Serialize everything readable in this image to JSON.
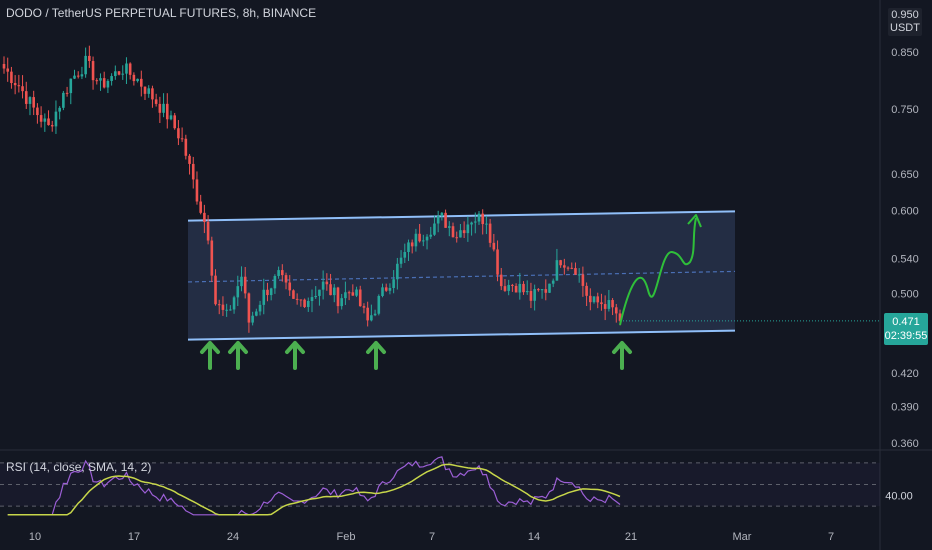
{
  "header": {
    "title": "DODO / TetherUS PERPETUAL FUTURES, 8h, BINANCE",
    "currency_line1": "0.950",
    "currency_line2": "USDT"
  },
  "price_badge": {
    "price": "0.471",
    "countdown": "02:39:55"
  },
  "rsi_label": "RSI (14, close, SMA, 14, 2)",
  "colors": {
    "background": "#131722",
    "up": "#26a69a",
    "down": "#ef5350",
    "channel_line": "#90bff9",
    "channel_fill": "#2a3550",
    "arrow": "#4caf50",
    "rsi": "#9c5fd6",
    "rsi_sma": "#c7d64a"
  },
  "chart_data": [
    {
      "type": "candlestick",
      "title": "DODO / TetherUS PERPETUAL FUTURES, 8h, BINANCE",
      "y_axis": {
        "scale": "log",
        "ticks": [
          "0.950",
          "0.850",
          "0.750",
          "0.650",
          "0.600",
          "0.540",
          "0.500",
          "0.420",
          "0.390",
          "0.360"
        ],
        "range": [
          0.355,
          0.96
        ]
      },
      "x_axis": {
        "ticks": [
          "10",
          "17",
          "24",
          "Feb",
          "7",
          "14",
          "21",
          "Mar",
          "7"
        ]
      },
      "channel": {
        "top": [
          0.587,
          0.599
        ],
        "bottom": [
          0.452,
          0.461
        ],
        "midline": [
          0.513,
          0.525
        ]
      },
      "last_price": 0.471,
      "anchor_closes": [
        {
          "i": 0,
          "c": 0.82
        },
        {
          "i": 4,
          "c": 0.79
        },
        {
          "i": 8,
          "c": 0.75
        },
        {
          "i": 12,
          "c": 0.72
        },
        {
          "i": 18,
          "c": 0.8
        },
        {
          "i": 22,
          "c": 0.83
        },
        {
          "i": 26,
          "c": 0.79
        },
        {
          "i": 32,
          "c": 0.82
        },
        {
          "i": 36,
          "c": 0.8
        },
        {
          "i": 40,
          "c": 0.77
        },
        {
          "i": 44,
          "c": 0.74
        },
        {
          "i": 48,
          "c": 0.7
        },
        {
          "i": 52,
          "c": 0.62
        },
        {
          "i": 55,
          "c": 0.57
        },
        {
          "i": 57,
          "c": 0.49
        },
        {
          "i": 60,
          "c": 0.475
        },
        {
          "i": 64,
          "c": 0.52
        },
        {
          "i": 66,
          "c": 0.47
        },
        {
          "i": 70,
          "c": 0.5
        },
        {
          "i": 74,
          "c": 0.52
        },
        {
          "i": 78,
          "c": 0.49
        },
        {
          "i": 82,
          "c": 0.495
        },
        {
          "i": 86,
          "c": 0.51
        },
        {
          "i": 90,
          "c": 0.495
        },
        {
          "i": 94,
          "c": 0.505
        },
        {
          "i": 98,
          "c": 0.47
        },
        {
          "i": 102,
          "c": 0.5
        },
        {
          "i": 106,
          "c": 0.53
        },
        {
          "i": 110,
          "c": 0.56
        },
        {
          "i": 114,
          "c": 0.575
        },
        {
          "i": 118,
          "c": 0.59
        },
        {
          "i": 122,
          "c": 0.57
        },
        {
          "i": 126,
          "c": 0.59
        },
        {
          "i": 130,
          "c": 0.59
        },
        {
          "i": 134,
          "c": 0.51
        },
        {
          "i": 138,
          "c": 0.51
        },
        {
          "i": 142,
          "c": 0.495
        },
        {
          "i": 146,
          "c": 0.505
        },
        {
          "i": 150,
          "c": 0.54
        },
        {
          "i": 154,
          "c": 0.53
        },
        {
          "i": 158,
          "c": 0.49
        },
        {
          "i": 162,
          "c": 0.49
        },
        {
          "i": 166,
          "c": 0.475
        }
      ],
      "candle_count": 167
    },
    {
      "type": "line",
      "title": "RSI (14, close, SMA, 14, 2)",
      "y_ticks": [
        "40.00"
      ],
      "bands": [
        70,
        50,
        30
      ],
      "series": [
        {
          "name": "RSI"
        },
        {
          "name": "SMA"
        }
      ]
    }
  ],
  "annotations": {
    "up_arrows_count": 5,
    "projection": "upward breakout path"
  }
}
